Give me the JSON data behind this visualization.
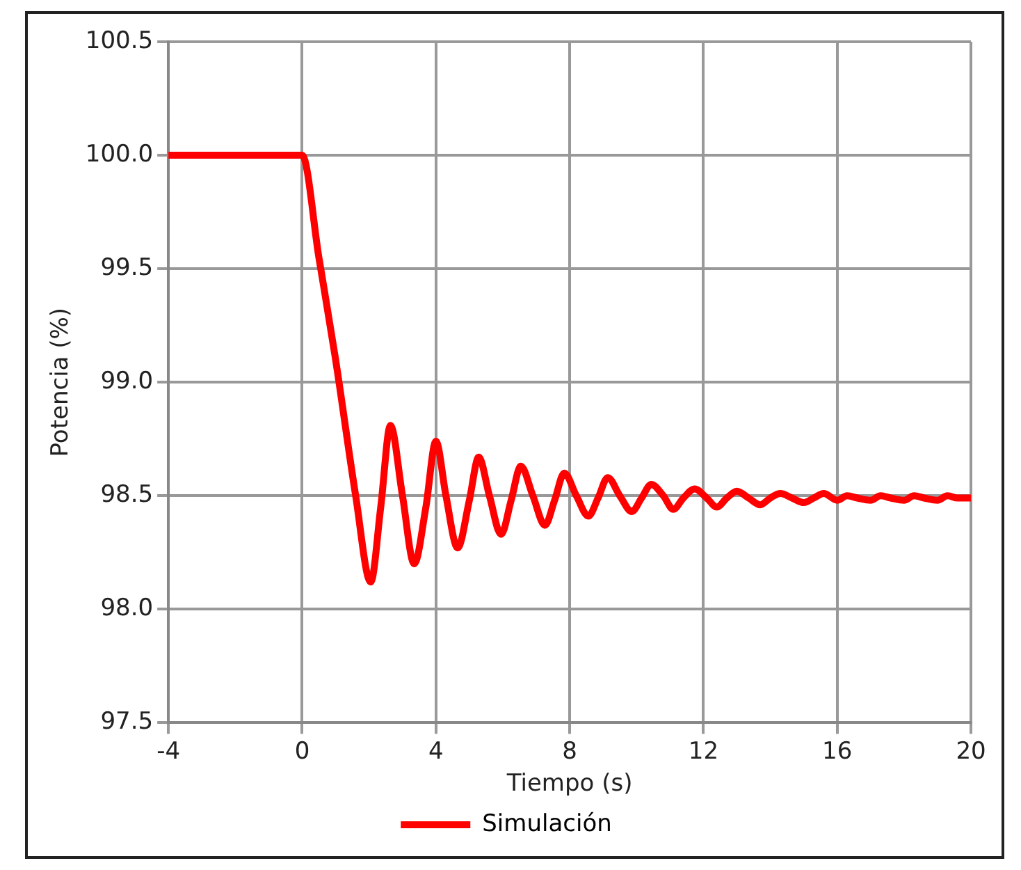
{
  "chart_data": {
    "type": "line",
    "xlabel": "Tiempo (s)",
    "ylabel": "Potencia (%)",
    "xlim": [
      -4,
      20
    ],
    "xticks": [
      -4,
      0,
      4,
      8,
      12,
      16,
      20
    ],
    "ylim": [
      97.5,
      100.5
    ],
    "yticks": [
      {
        "value": 97.5,
        "label": "97.5"
      },
      {
        "value": 98,
        "label": "98.0"
      },
      {
        "value": 98.5,
        "label": "98.5"
      },
      {
        "value": 99,
        "label": "99.0"
      },
      {
        "value": 99.5,
        "label": "99.5"
      },
      {
        "value": 100,
        "label": "100.0"
      },
      {
        "value": 100.5,
        "label": "100.5"
      }
    ],
    "grid": true,
    "legend": "bottom",
    "marker": "none",
    "line_style": "solid",
    "series": [
      {
        "name": "Simulación",
        "color": "#ff0000",
        "x": [
          -4,
          0,
          0.5,
          1,
          1.6,
          2.05,
          2.35,
          2.64,
          3.0,
          3.35,
          3.7,
          4.0,
          4.3,
          4.65,
          5.0,
          5.28,
          5.6,
          5.95,
          6.25,
          6.54,
          6.9,
          7.26,
          7.55,
          7.84,
          8.2,
          8.56,
          8.85,
          9.14,
          9.5,
          9.86,
          10.15,
          10.44,
          10.8,
          11.1,
          11.4,
          11.74,
          12.1,
          12.4,
          12.7,
          13.0,
          13.35,
          13.7,
          14.0,
          14.3,
          14.65,
          15.0,
          15.3,
          15.6,
          16.0,
          16.3,
          16.6,
          17.0,
          17.3,
          17.6,
          18.0,
          18.3,
          18.6,
          19.0,
          19.3,
          19.6,
          20
        ],
        "values": [
          100,
          100,
          99.55,
          99.1,
          98.5,
          98.12,
          98.45,
          98.81,
          98.5,
          98.2,
          98.45,
          98.74,
          98.5,
          98.27,
          98.48,
          98.67,
          98.5,
          98.33,
          98.48,
          98.63,
          98.5,
          98.37,
          98.48,
          98.6,
          98.5,
          98.41,
          98.49,
          98.58,
          98.5,
          98.43,
          98.49,
          98.55,
          98.5,
          98.44,
          98.49,
          98.53,
          98.49,
          98.45,
          98.49,
          98.52,
          98.49,
          98.46,
          98.49,
          98.51,
          98.49,
          98.47,
          98.49,
          98.51,
          98.48,
          98.5,
          98.49,
          98.48,
          98.5,
          98.49,
          98.48,
          98.5,
          98.49,
          98.48,
          98.5,
          98.49,
          98.49
        ]
      }
    ]
  }
}
